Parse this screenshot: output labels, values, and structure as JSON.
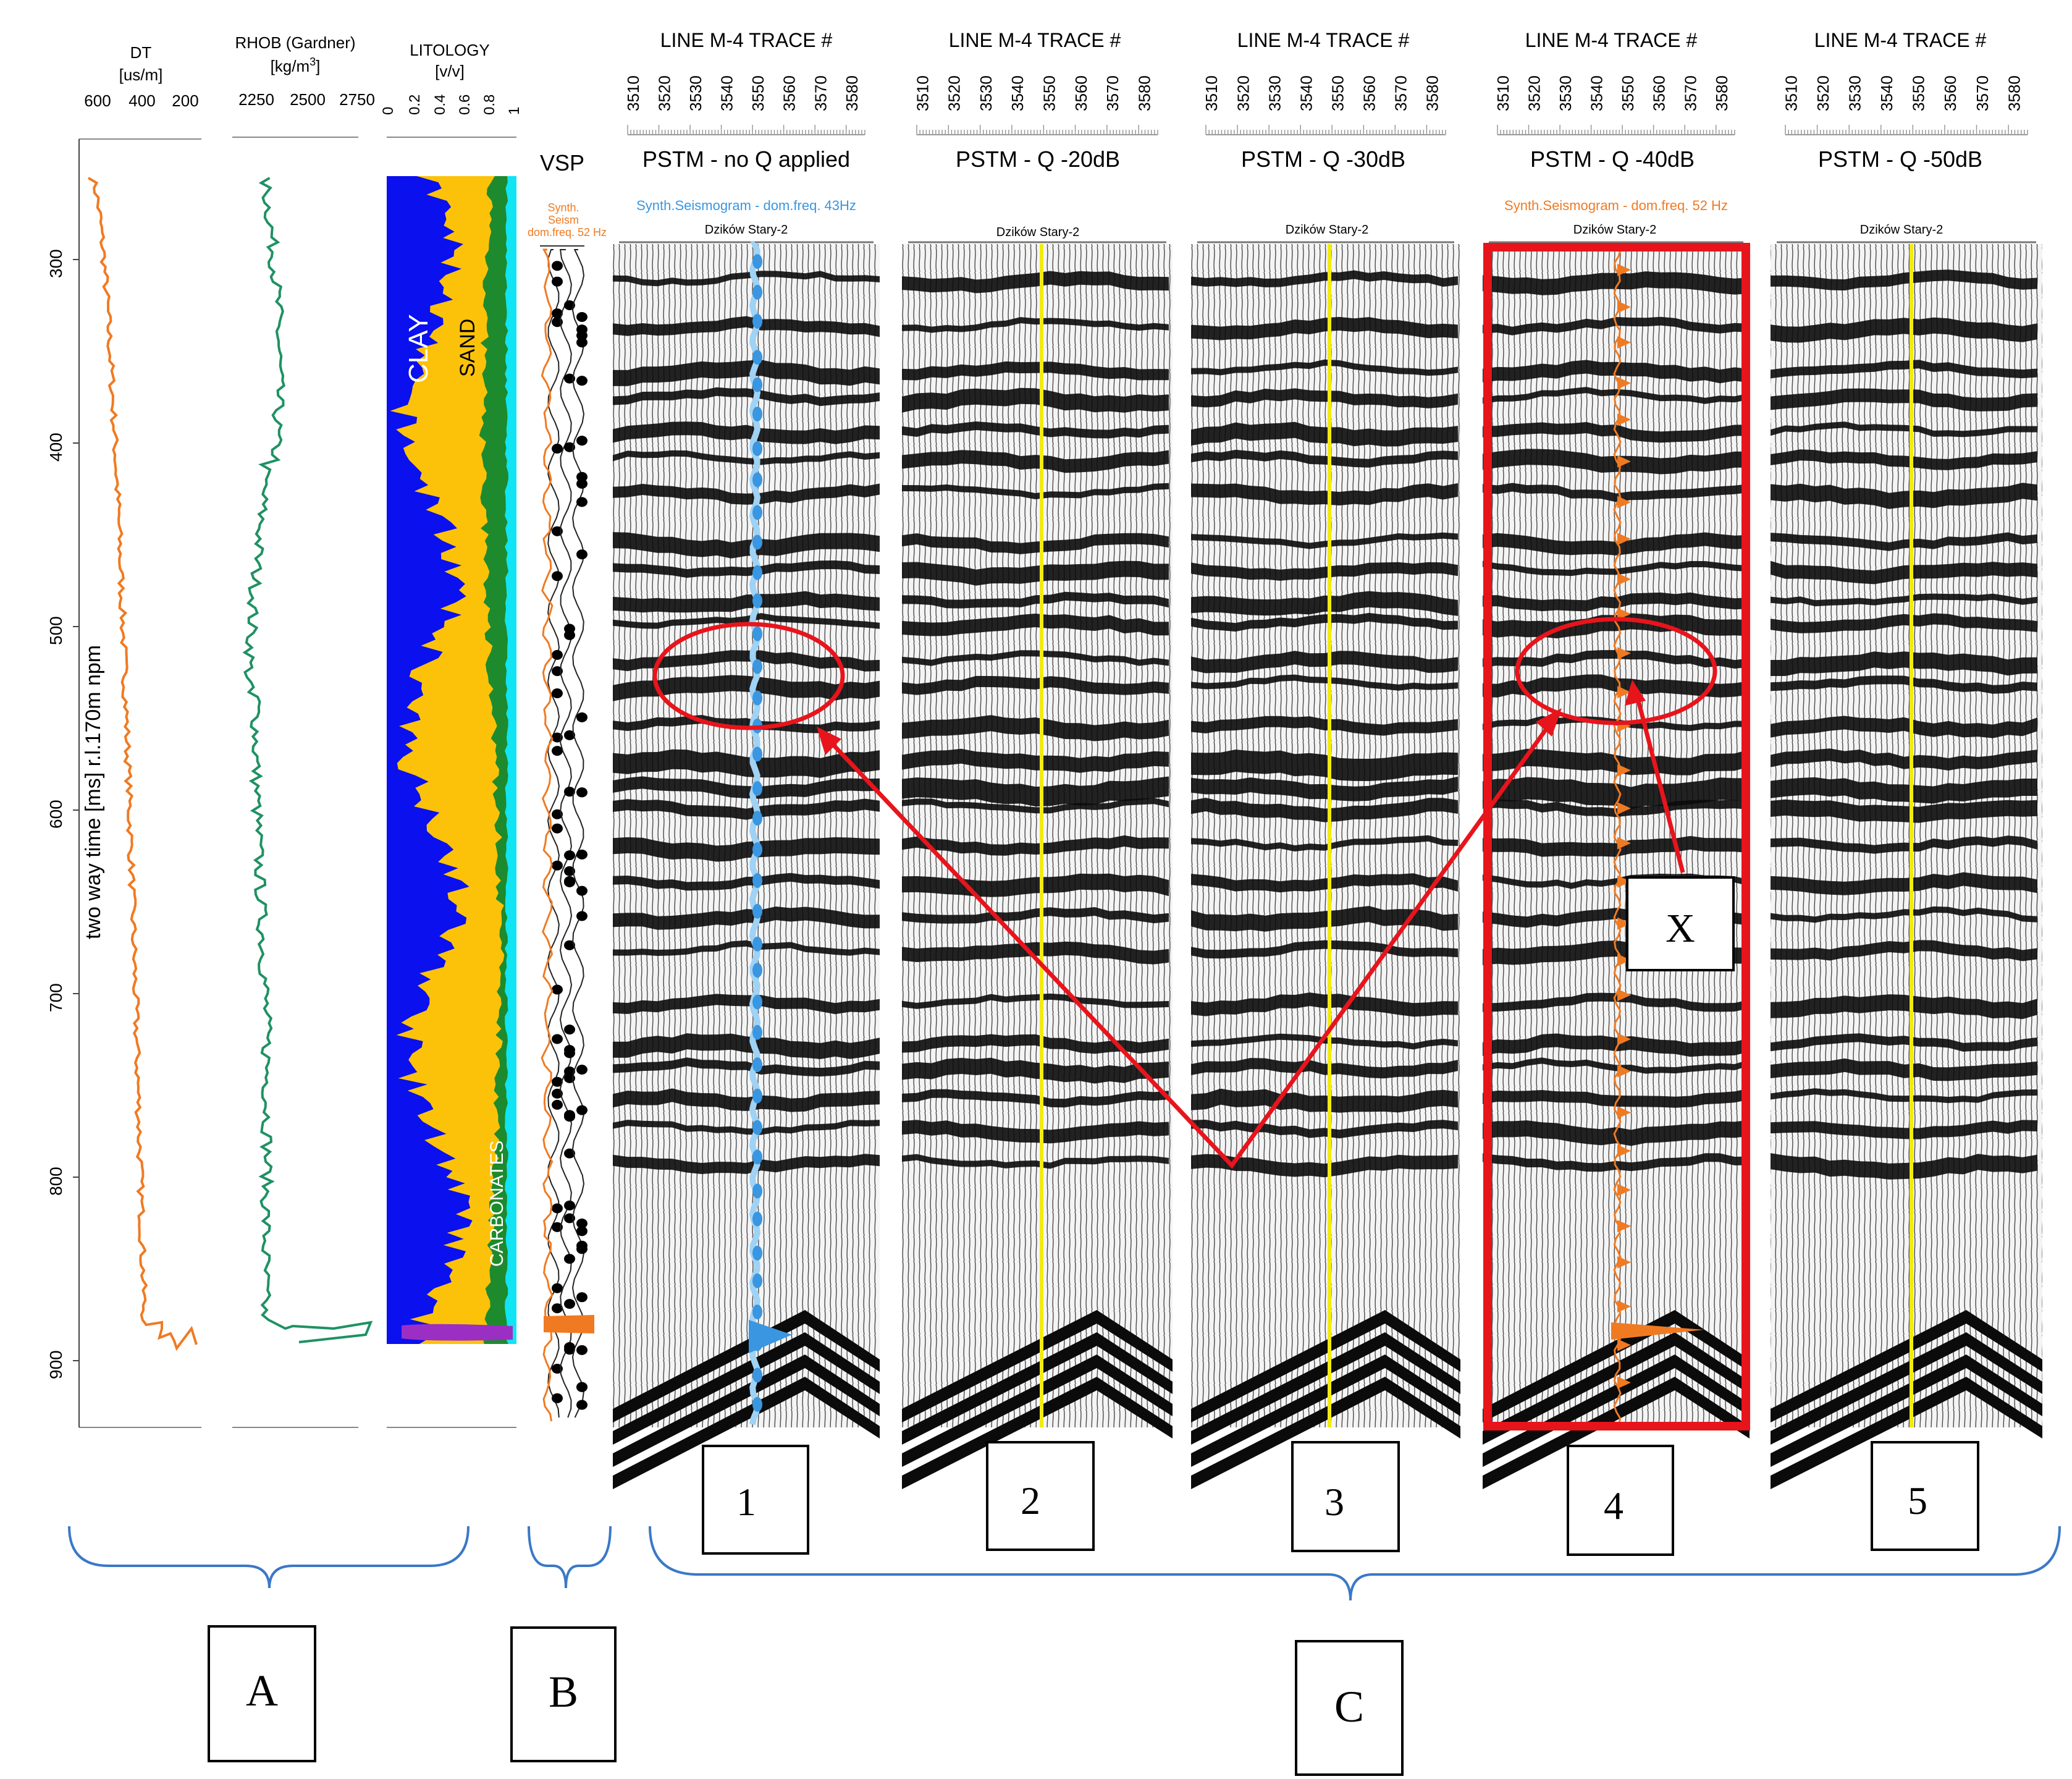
{
  "logs": {
    "dt": {
      "title": "DT",
      "unit": "[us/m]",
      "ticks": [
        "600",
        "400",
        "200"
      ],
      "color": "#f07a22"
    },
    "rhob": {
      "title": "RHOB (Gardner)",
      "unit_prefix": "[kg/m",
      "unit_sup": "3",
      "unit_suffix": "]",
      "ticks": [
        "2250",
        "2500",
        "2750"
      ],
      "color": "#1f9163"
    },
    "litology": {
      "title": "LITOLOGY",
      "unit": "[v/v]",
      "ticks": [
        "0",
        "0.2",
        "0.4",
        "0.6",
        "0.8",
        "1"
      ],
      "labels": {
        "clay": "CLAY",
        "sand": "SAND",
        "carbonates": "CARBONATES"
      },
      "colors": {
        "clay": "#0a10ee",
        "sand": "#fcc20a",
        "carbonates": "#1d8a2e",
        "cyan": "#11e4f2",
        "purple": "#9b2fc4"
      }
    },
    "vsp": {
      "title": "VSP",
      "synth_label": [
        "Synth.",
        "Seism",
        "dom.freq. 52 Hz"
      ],
      "color": "#f07a22"
    }
  },
  "time_axis": {
    "label": "two way time [ms] r.l.170m npm",
    "ticks": [
      "300",
      "400",
      "500",
      "600",
      "700",
      "800",
      "900"
    ]
  },
  "trace_ticks": [
    "3510",
    "3520",
    "3530",
    "3540",
    "3550",
    "3560",
    "3570",
    "3580"
  ],
  "panels": [
    {
      "header": "LINE M-4 TRACE #",
      "title": "PSTM - no Q applied",
      "well": "Dzików Stary-2",
      "synth_label": "Synth.Seismogram - dom.freq. 43Hz",
      "synth_color": "#3a96e0",
      "number": "1"
    },
    {
      "header": "LINE M-4 TRACE #",
      "title": "PSTM - Q  -20dB",
      "well": "Dzików Stary-2",
      "synth_label": "",
      "synth_color": "#f2ea12",
      "number": "2"
    },
    {
      "header": "LINE M-4 TRACE #",
      "title": "PSTM - Q  -30dB",
      "well": "Dzików Stary-2",
      "synth_label": "",
      "synth_color": "#f2ea12",
      "number": "3"
    },
    {
      "header": "LINE M-4 TRACE #",
      "title": "PSTM - Q  -40dB",
      "well": "Dzików Stary-2",
      "synth_label": "Synth.Seismogram - dom.freq. 52 Hz",
      "synth_color": "#f07a22",
      "number": "4"
    },
    {
      "header": "LINE M-4 TRACE #",
      "title": "PSTM - Q  -50dB",
      "well": "Dzików Stary-2",
      "synth_label": "",
      "synth_color": "#f2ea12",
      "number": "5"
    }
  ],
  "annotations": {
    "x_label": "X",
    "highlight_color": "#e8141c"
  },
  "groups": [
    {
      "label": "A"
    },
    {
      "label": "B"
    },
    {
      "label": "C"
    }
  ]
}
